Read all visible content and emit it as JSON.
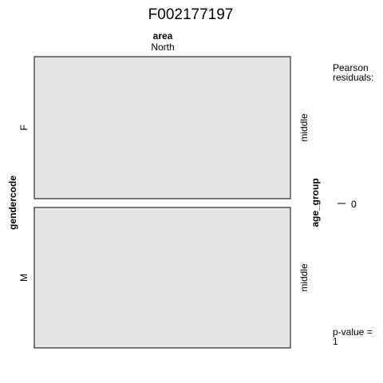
{
  "chart_data": {
    "type": "mosaic",
    "title": "F002177197",
    "top_variable": {
      "name": "area",
      "levels": [
        "North"
      ]
    },
    "left_variable": {
      "name": "gendercode",
      "levels": [
        "F",
        "M"
      ]
    },
    "right_variable": {
      "name": "age_group",
      "levels": [
        "middle",
        "middle"
      ]
    },
    "cells": [
      {
        "area": "North",
        "gendercode": "F",
        "age_group": "middle",
        "proportion": 0.5,
        "pearson_residual": 0
      },
      {
        "area": "North",
        "gendercode": "M",
        "age_group": "middle",
        "proportion": 0.5,
        "pearson_residual": 0
      }
    ],
    "legend": {
      "title_line1": "Pearson",
      "title_line2": "residuals:",
      "ticks": [
        "0"
      ],
      "pvalue_line1": "p-value =",
      "pvalue_line2": "1"
    },
    "colors": {
      "cell_fill": "#e5e5e5",
      "cell_border": "#000000"
    }
  }
}
